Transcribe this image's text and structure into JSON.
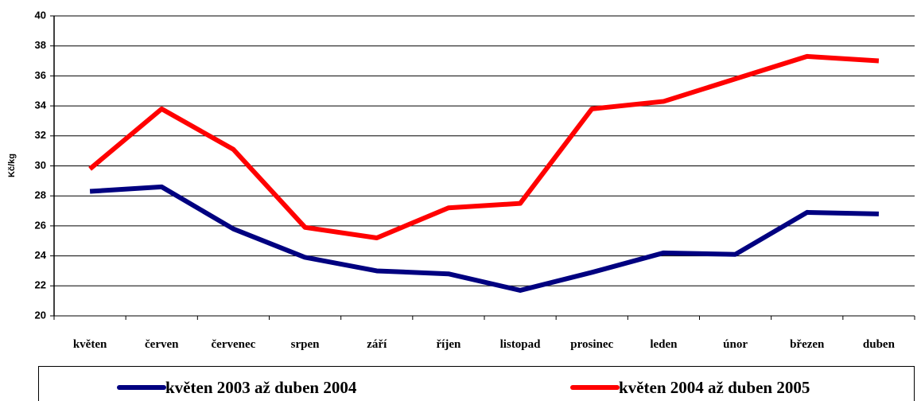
{
  "chart_data": {
    "type": "line",
    "y_label": "Kč/kg",
    "categories": [
      "květen",
      "červen",
      "červenec",
      "srpen",
      "září",
      "říjen",
      "listopad",
      "prosinec",
      "leden",
      "únor",
      "březen",
      "duben"
    ],
    "series": [
      {
        "name": "květen 2003 až duben 2004",
        "color": "#000080",
        "values": [
          28.3,
          28.6,
          25.8,
          23.9,
          23.0,
          22.8,
          21.7,
          22.9,
          24.2,
          24.1,
          26.9,
          26.8
        ]
      },
      {
        "name": "květen 2004 až duben 2005",
        "color": "#ff0000",
        "values": [
          29.8,
          33.8,
          31.1,
          25.9,
          25.2,
          27.2,
          27.5,
          33.8,
          34.3,
          35.8,
          37.3,
          37.0
        ]
      }
    ],
    "ylim": [
      20,
      40
    ],
    "yticks": [
      20,
      22,
      24,
      26,
      28,
      30,
      32,
      34,
      36,
      38,
      40
    ],
    "grid": true,
    "legend": "bottom"
  }
}
